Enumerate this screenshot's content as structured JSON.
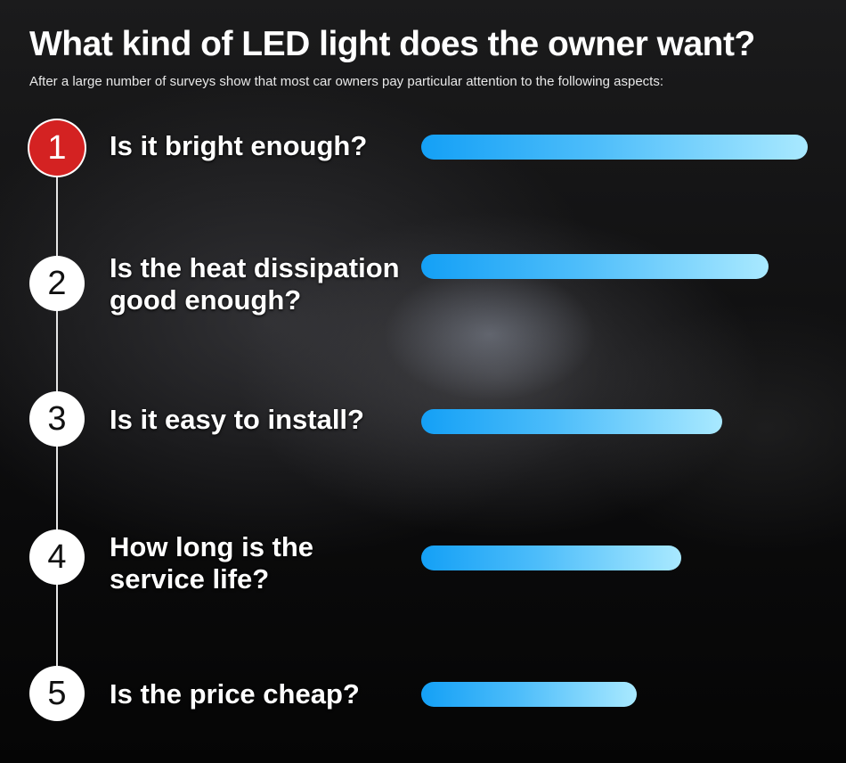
{
  "header": {
    "title": "What kind of LED light does the owner want?",
    "subtitle": "After a large number of surveys show that most car owners pay particular attention to the following aspects:"
  },
  "items": [
    {
      "number": "1",
      "lines": [
        "Is it bright enough?"
      ]
    },
    {
      "number": "2",
      "lines": [
        "Is the heat dissipation",
        "good enough?"
      ]
    },
    {
      "number": "3",
      "lines": [
        "Is it easy to install?"
      ]
    },
    {
      "number": "4",
      "lines": [
        "How long is the",
        "service life?"
      ]
    },
    {
      "number": "5",
      "lines": [
        "Is the price cheap?"
      ]
    }
  ]
}
